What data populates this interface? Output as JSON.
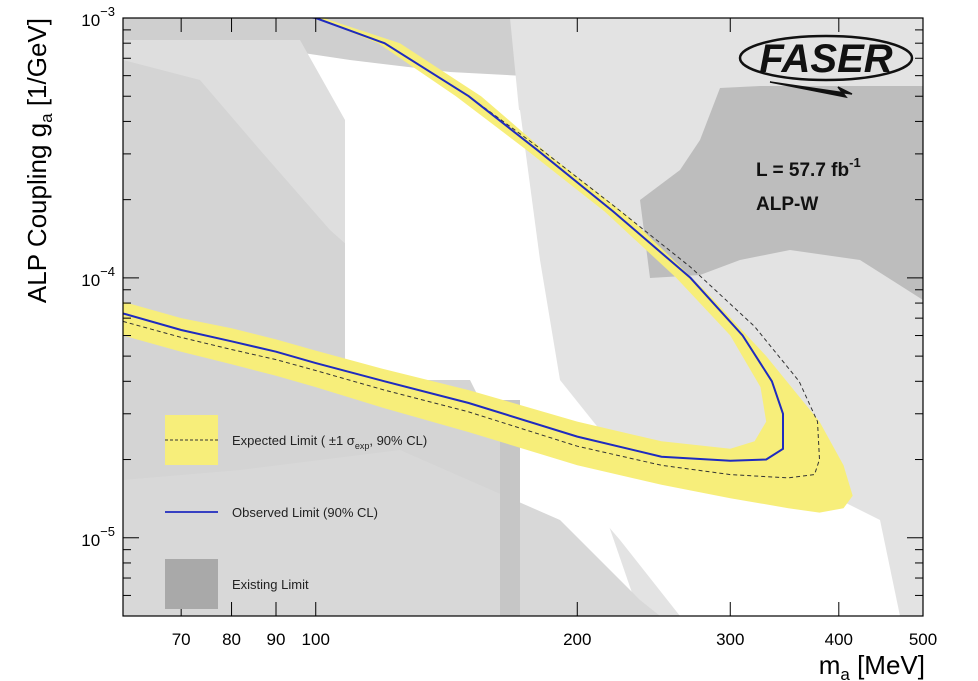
{
  "chart_data": {
    "type": "line",
    "title": "",
    "xlabel": {
      "main": "m",
      "sub": "a",
      "unit": " [MeV]"
    },
    "ylabel": {
      "main": "ALP Coupling g",
      "sub": "a",
      "unit": " [1/GeV]"
    },
    "xscale": "log",
    "yscale": "log",
    "xlim": [
      60,
      500
    ],
    "ylim": [
      5e-06,
      0.001
    ],
    "x_ticks": [
      70,
      80,
      90,
      100,
      200,
      300,
      400,
      500
    ],
    "x_tick_labels": [
      "70",
      "80",
      "90",
      "100",
      "200",
      "300",
      "400",
      "500"
    ],
    "y_ticks": [
      {
        "value": 1e-05,
        "base": "10",
        "exp": "−5"
      },
      {
        "value": 0.0001,
        "base": "10",
        "exp": "−4"
      },
      {
        "value": 0.001,
        "base": "10",
        "exp": "−3"
      }
    ],
    "grid": false,
    "legend_position": "bottom-left",
    "annotations": {
      "lumi_prefix": "L = 57.7 fb",
      "lumi_exp": "-1",
      "model": "ALP-W",
      "logo": "FASER"
    },
    "legend": {
      "expected_pre": "Expected Limit ( ±1 σ",
      "expected_sub": "exp",
      "expected_post": ", 90% CL)",
      "observed": "Observed Limit (90% CL)",
      "existing": "Existing Limit"
    },
    "colors": {
      "band": "#f7ee7a",
      "observed": "#1f2bbf",
      "expected": "#333333",
      "existing_light": "#e0e0e0",
      "existing_mid": "#cfcfcf",
      "existing_dark": "#a9a9a9"
    },
    "series": [
      {
        "role": "observed",
        "x": [
          60,
          70,
          80,
          90,
          100,
          120,
          150,
          200,
          250,
          300,
          330,
          345,
          345,
          335,
          310,
          270,
          220,
          180,
          150,
          120,
          100,
          90
        ],
        "y": [
          7.3e-05,
          6.3e-05,
          5.7e-05,
          5.2e-05,
          4.7e-05,
          4e-05,
          3.3e-05,
          2.45e-05,
          2.05e-05,
          1.98e-05,
          2e-05,
          2.2e-05,
          3e-05,
          4e-05,
          6e-05,
          0.0001,
          0.00018,
          0.00031,
          0.0005,
          0.0008,
          0.001,
          0.00105
        ]
      },
      {
        "role": "expected",
        "x": [
          60,
          70,
          80,
          90,
          100,
          120,
          150,
          200,
          250,
          300,
          350,
          375,
          380,
          378,
          360,
          320,
          270,
          220,
          180,
          150,
          120,
          100,
          90
        ],
        "y": [
          6.8e-05,
          5.9e-05,
          5.3e-05,
          4.85e-05,
          4.4e-05,
          3.7e-05,
          3.05e-05,
          2.25e-05,
          1.9e-05,
          1.75e-05,
          1.7e-05,
          1.75e-05,
          2e-05,
          2.8e-05,
          4e-05,
          6.5e-05,
          0.00011,
          0.00019,
          0.00032,
          0.0005,
          0.0008,
          0.001,
          0.00105
        ]
      },
      {
        "role": "band_upper",
        "x": [
          60,
          70,
          80,
          90,
          100,
          120,
          150,
          200,
          250,
          300,
          320,
          330,
          325,
          300,
          260,
          215,
          175,
          145,
          118,
          100,
          90
        ],
        "y": [
          8.1e-05,
          7e-05,
          6.4e-05,
          5.8e-05,
          5.25e-05,
          4.45e-05,
          3.7e-05,
          2.8e-05,
          2.35e-05,
          2.2e-05,
          2.35e-05,
          2.8e-05,
          3.8e-05,
          6e-05,
          0.0001,
          0.00018,
          0.00031,
          0.0005,
          0.0008,
          0.001,
          0.00105
        ]
      },
      {
        "role": "band_lower",
        "x": [
          60,
          70,
          80,
          90,
          100,
          120,
          150,
          200,
          250,
          300,
          350,
          380,
          405,
          415,
          405,
          380,
          330,
          280,
          230,
          185,
          155,
          125,
          102,
          92
        ],
        "y": [
          6e-05,
          5.2e-05,
          4.65e-05,
          4.2e-05,
          3.8e-05,
          3.15e-05,
          2.55e-05,
          1.9e-05,
          1.6e-05,
          1.42e-05,
          1.3e-05,
          1.25e-05,
          1.3e-05,
          1.45e-05,
          1.9e-05,
          2.8e-05,
          5e-05,
          9e-05,
          0.00017,
          0.0003,
          0.0005,
          0.0008,
          0.001,
          0.00105
        ]
      }
    ]
  }
}
